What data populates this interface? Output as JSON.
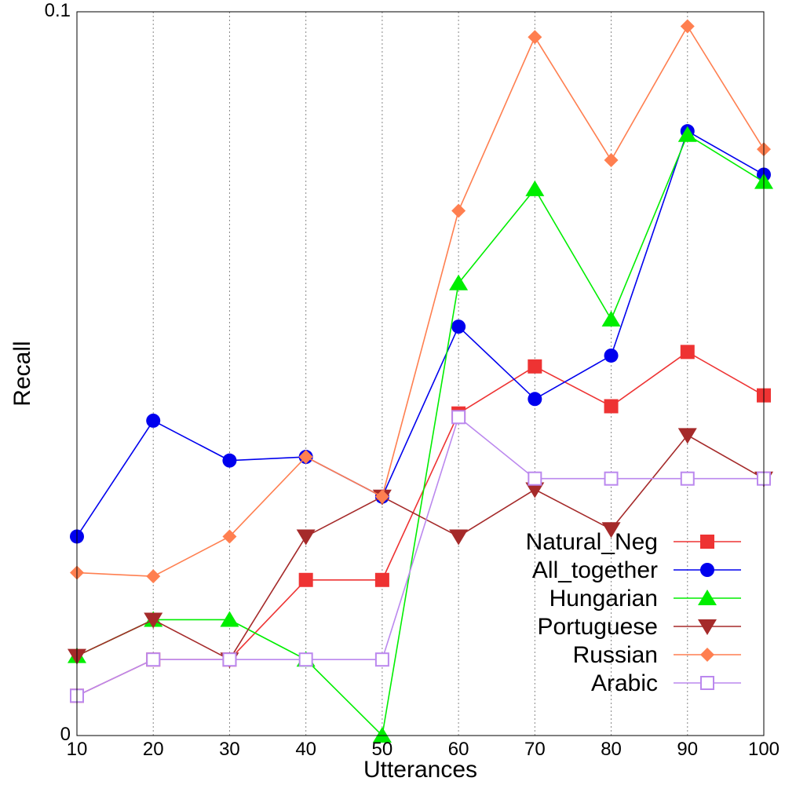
{
  "chart_data": {
    "type": "line",
    "title": "",
    "xlabel": "Utterances",
    "ylabel": "Recall",
    "x": [
      10,
      20,
      30,
      40,
      50,
      60,
      70,
      80,
      90,
      100
    ],
    "x_ticks": [
      "10",
      "20",
      "30",
      "40",
      "50",
      "60",
      "70",
      "80",
      "90",
      "100"
    ],
    "y_ticks": [
      "0",
      "0.1"
    ],
    "xlim": [
      10,
      100
    ],
    "ylim": [
      0,
      0.1
    ],
    "grid": "vertical dotted",
    "legend_position": "lower-right",
    "series": [
      {
        "name": "Natural_Neg",
        "color": "#ee3333",
        "marker": "square-filled",
        "values": [
          0.0055,
          0.0105,
          0.0105,
          0.0215,
          0.0215,
          0.0445,
          0.051,
          0.0455,
          0.053,
          0.047
        ]
      },
      {
        "name": "All_together",
        "color": "#0000ee",
        "marker": "circle-filled",
        "values": [
          0.0275,
          0.0435,
          0.038,
          0.0385,
          0.033,
          0.0565,
          0.0465,
          0.0525,
          0.0835,
          0.0775
        ]
      },
      {
        "name": "Hungarian",
        "color": "#00ee00",
        "marker": "triangle-up-filled",
        "values": [
          0.011,
          0.016,
          0.016,
          0.0105,
          0.0,
          0.0625,
          0.0755,
          0.0575,
          0.083,
          0.0765
        ]
      },
      {
        "name": "Portuguese",
        "color": "#a52a2a",
        "marker": "triangle-down-filled",
        "values": [
          0.011,
          0.016,
          0.0105,
          0.0275,
          0.033,
          0.0275,
          0.034,
          0.0285,
          0.0415,
          0.0355
        ]
      },
      {
        "name": "Russian",
        "color": "#ff7f50",
        "marker": "diamond-filled",
        "values": [
          0.0225,
          0.022,
          0.0275,
          0.0385,
          0.033,
          0.0725,
          0.0965,
          0.0795,
          0.098,
          0.081
        ]
      },
      {
        "name": "Arabic",
        "color": "#bb88ee",
        "marker": "square-open",
        "values": [
          0.0055,
          0.0105,
          0.0105,
          0.0105,
          0.0105,
          0.044,
          0.0355,
          0.0355,
          0.0355,
          0.0355
        ]
      }
    ]
  }
}
